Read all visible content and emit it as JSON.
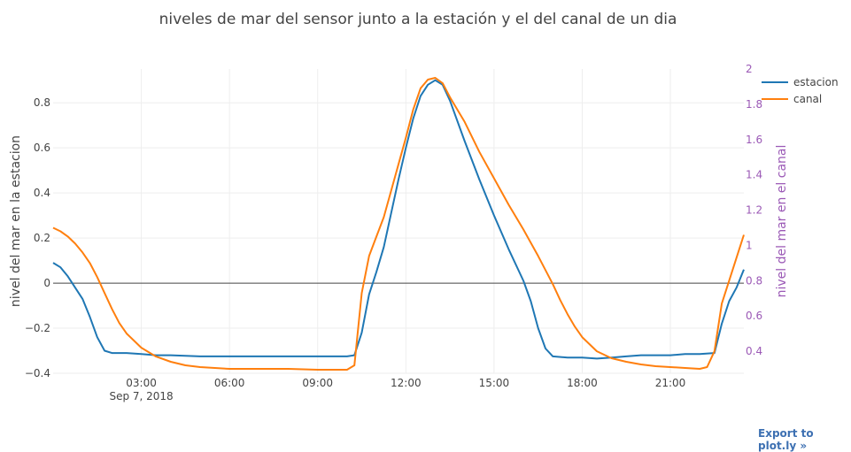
{
  "chart_data": {
    "type": "line",
    "title": "niveles de mar del sensor junto a la estación y el del canal de un dia",
    "y1label": "nivel del mar en la estacion",
    "y2label": "nivel del mar en el canal",
    "x_range": [
      "2018-09-07 00:00",
      "2018-09-07 23:30"
    ],
    "x_ticks": [
      {
        "t": "2018-09-07 03:00",
        "label": "03:00",
        "sub": "Sep 7, 2018"
      },
      {
        "t": "2018-09-07 06:00",
        "label": "06:00"
      },
      {
        "t": "2018-09-07 09:00",
        "label": "09:00"
      },
      {
        "t": "2018-09-07 12:00",
        "label": "12:00"
      },
      {
        "t": "2018-09-07 15:00",
        "label": "15:00"
      },
      {
        "t": "2018-09-07 18:00",
        "label": "18:00"
      },
      {
        "t": "2018-09-07 21:00",
        "label": "21:00"
      }
    ],
    "y1_range": [
      -0.4,
      0.95
    ],
    "y1_ticks": [
      -0.4,
      -0.2,
      0,
      0.2,
      0.4,
      0.6,
      0.8
    ],
    "y1_tick_labels": [
      "−0.4",
      "−0.2",
      "0",
      "0.2",
      "0.4",
      "0.6",
      "0.8"
    ],
    "y2_range": [
      0.275,
      2.0
    ],
    "y2_ticks": [
      0.4,
      0.6,
      0.8,
      1,
      1.2,
      1.4,
      1.6,
      1.8,
      2
    ],
    "y2_tick_labels": [
      "0.4",
      "0.6",
      "0.8",
      "1",
      "1.2",
      "1.4",
      "1.6",
      "1.8",
      "2"
    ],
    "grid": true,
    "legend_position": "top-right",
    "series": [
      {
        "name": "estacion",
        "color": "#1f77b4",
        "axis": "y1",
        "points": [
          [
            "2018-09-07 00:00",
            0.09
          ],
          [
            "2018-09-07 00:15",
            0.07
          ],
          [
            "2018-09-07 00:30",
            0.03
          ],
          [
            "2018-09-07 00:45",
            -0.02
          ],
          [
            "2018-09-07 01:00",
            -0.07
          ],
          [
            "2018-09-07 01:15",
            -0.15
          ],
          [
            "2018-09-07 01:30",
            -0.24
          ],
          [
            "2018-09-07 01:45",
            -0.3
          ],
          [
            "2018-09-07 02:00",
            -0.31
          ],
          [
            "2018-09-07 02:30",
            -0.31
          ],
          [
            "2018-09-07 03:00",
            -0.315
          ],
          [
            "2018-09-07 03:30",
            -0.32
          ],
          [
            "2018-09-07 04:00",
            -0.32
          ],
          [
            "2018-09-07 05:00",
            -0.325
          ],
          [
            "2018-09-07 06:00",
            -0.325
          ],
          [
            "2018-09-07 07:00",
            -0.325
          ],
          [
            "2018-09-07 08:00",
            -0.325
          ],
          [
            "2018-09-07 09:00",
            -0.325
          ],
          [
            "2018-09-07 10:00",
            -0.325
          ],
          [
            "2018-09-07 10:15",
            -0.32
          ],
          [
            "2018-09-07 10:30",
            -0.22
          ],
          [
            "2018-09-07 10:45",
            -0.05
          ],
          [
            "2018-09-07 11:00",
            0.05
          ],
          [
            "2018-09-07 11:15",
            0.16
          ],
          [
            "2018-09-07 11:30",
            0.31
          ],
          [
            "2018-09-07 11:45",
            0.46
          ],
          [
            "2018-09-07 12:00",
            0.6
          ],
          [
            "2018-09-07 12:15",
            0.73
          ],
          [
            "2018-09-07 12:30",
            0.83
          ],
          [
            "2018-09-07 12:45",
            0.88
          ],
          [
            "2018-09-07 13:00",
            0.9
          ],
          [
            "2018-09-07 13:15",
            0.88
          ],
          [
            "2018-09-07 13:30",
            0.81
          ],
          [
            "2018-09-07 14:00",
            0.63
          ],
          [
            "2018-09-07 14:30",
            0.46
          ],
          [
            "2018-09-07 15:00",
            0.3
          ],
          [
            "2018-09-07 15:30",
            0.15
          ],
          [
            "2018-09-07 16:00",
            0.01
          ],
          [
            "2018-09-07 16:15",
            -0.08
          ],
          [
            "2018-09-07 16:30",
            -0.2
          ],
          [
            "2018-09-07 16:45",
            -0.29
          ],
          [
            "2018-09-07 17:00",
            -0.325
          ],
          [
            "2018-09-07 17:30",
            -0.33
          ],
          [
            "2018-09-07 18:00",
            -0.33
          ],
          [
            "2018-09-07 18:30",
            -0.335
          ],
          [
            "2018-09-07 19:00",
            -0.33
          ],
          [
            "2018-09-07 19:30",
            -0.325
          ],
          [
            "2018-09-07 20:00",
            -0.32
          ],
          [
            "2018-09-07 20:30",
            -0.32
          ],
          [
            "2018-09-07 21:00",
            -0.32
          ],
          [
            "2018-09-07 21:30",
            -0.315
          ],
          [
            "2018-09-07 22:00",
            -0.315
          ],
          [
            "2018-09-07 22:30",
            -0.31
          ],
          [
            "2018-09-07 22:45",
            -0.18
          ],
          [
            "2018-09-07 23:00",
            -0.08
          ],
          [
            "2018-09-07 23:15",
            -0.02
          ],
          [
            "2018-09-07 23:30",
            0.06
          ]
        ]
      },
      {
        "name": "canal",
        "color": "#ff7f0e",
        "axis": "y2",
        "points": [
          [
            "2018-09-07 00:00",
            1.1
          ],
          [
            "2018-09-07 00:15",
            1.08
          ],
          [
            "2018-09-07 00:30",
            1.05
          ],
          [
            "2018-09-07 00:45",
            1.01
          ],
          [
            "2018-09-07 01:00",
            0.96
          ],
          [
            "2018-09-07 01:15",
            0.9
          ],
          [
            "2018-09-07 01:30",
            0.82
          ],
          [
            "2018-09-07 01:45",
            0.73
          ],
          [
            "2018-09-07 02:00",
            0.64
          ],
          [
            "2018-09-07 02:15",
            0.56
          ],
          [
            "2018-09-07 02:30",
            0.5
          ],
          [
            "2018-09-07 03:00",
            0.42
          ],
          [
            "2018-09-07 03:30",
            0.37
          ],
          [
            "2018-09-07 04:00",
            0.34
          ],
          [
            "2018-09-07 04:30",
            0.32
          ],
          [
            "2018-09-07 05:00",
            0.31
          ],
          [
            "2018-09-07 05:30",
            0.305
          ],
          [
            "2018-09-07 06:00",
            0.3
          ],
          [
            "2018-09-07 07:00",
            0.3
          ],
          [
            "2018-09-07 08:00",
            0.3
          ],
          [
            "2018-09-07 09:00",
            0.295
          ],
          [
            "2018-09-07 10:00",
            0.295
          ],
          [
            "2018-09-07 10:15",
            0.32
          ],
          [
            "2018-09-07 10:30",
            0.73
          ],
          [
            "2018-09-07 10:45",
            0.94
          ],
          [
            "2018-09-07 11:00",
            1.05
          ],
          [
            "2018-09-07 11:15",
            1.16
          ],
          [
            "2018-09-07 11:30",
            1.31
          ],
          [
            "2018-09-07 11:45",
            1.46
          ],
          [
            "2018-09-07 12:00",
            1.61
          ],
          [
            "2018-09-07 12:15",
            1.77
          ],
          [
            "2018-09-07 12:30",
            1.89
          ],
          [
            "2018-09-07 12:45",
            1.94
          ],
          [
            "2018-09-07 13:00",
            1.95
          ],
          [
            "2018-09-07 13:15",
            1.92
          ],
          [
            "2018-09-07 13:30",
            1.84
          ],
          [
            "2018-09-07 14:00",
            1.7
          ],
          [
            "2018-09-07 14:30",
            1.53
          ],
          [
            "2018-09-07 15:00",
            1.38
          ],
          [
            "2018-09-07 15:30",
            1.23
          ],
          [
            "2018-09-07 16:00",
            1.09
          ],
          [
            "2018-09-07 16:30",
            0.94
          ],
          [
            "2018-09-07 17:00",
            0.78
          ],
          [
            "2018-09-07 17:15",
            0.69
          ],
          [
            "2018-09-07 17:30",
            0.61
          ],
          [
            "2018-09-07 17:45",
            0.54
          ],
          [
            "2018-09-07 18:00",
            0.48
          ],
          [
            "2018-09-07 18:30",
            0.4
          ],
          [
            "2018-09-07 19:00",
            0.36
          ],
          [
            "2018-09-07 19:30",
            0.34
          ],
          [
            "2018-09-07 20:00",
            0.325
          ],
          [
            "2018-09-07 20:30",
            0.315
          ],
          [
            "2018-09-07 21:00",
            0.31
          ],
          [
            "2018-09-07 21:30",
            0.305
          ],
          [
            "2018-09-07 22:00",
            0.3
          ],
          [
            "2018-09-07 22:15",
            0.31
          ],
          [
            "2018-09-07 22:30",
            0.4
          ],
          [
            "2018-09-07 22:45",
            0.67
          ],
          [
            "2018-09-07 23:00",
            0.8
          ],
          [
            "2018-09-07 23:15",
            0.93
          ],
          [
            "2018-09-07 23:30",
            1.06
          ]
        ]
      }
    ]
  },
  "export_link": "Export to plot.ly »"
}
